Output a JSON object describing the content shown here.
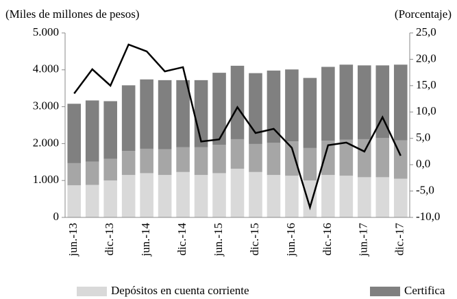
{
  "chart_data": {
    "type": "bar",
    "ylabel": "(Miles de millones de pesos)",
    "y2label": "(Porcentaje)",
    "categories": [
      "jun.-13",
      null,
      "dic.-13",
      null,
      "jun.-14",
      null,
      "dic.-14",
      null,
      "jun.-15",
      null,
      "dic.-15",
      null,
      "jun.-16",
      null,
      "dic.-16",
      null,
      "jun.-17",
      null,
      "dic.-17"
    ],
    "series": [
      {
        "name": "Depósitos en cuenta corriente",
        "color": "#d9d9d9",
        "values": [
          870,
          880,
          1000,
          1150,
          1200,
          1150,
          1230,
          1150,
          1200,
          1320,
          1230,
          1150,
          1130,
          1000,
          1150,
          1130,
          1090,
          1090,
          1050
        ]
      },
      {
        "color": "#a6a6a6",
        "values": [
          600,
          630,
          590,
          650,
          660,
          700,
          670,
          750,
          770,
          800,
          760,
          870,
          930,
          880,
          930,
          980,
          1030,
          1060,
          1040
        ]
      },
      {
        "name": "Certifica",
        "color": "#808080",
        "values": [
          1610,
          1660,
          1560,
          1780,
          1880,
          1870,
          1820,
          1820,
          1950,
          1990,
          1920,
          1960,
          1950,
          1900,
          2000,
          2030,
          2000,
          1970,
          2050
        ]
      },
      {
        "type": "line",
        "axis": "y2",
        "color": "#000000",
        "values": [
          13.5,
          18.1,
          15.0,
          22.8,
          21.5,
          17.7,
          18.5,
          4.4,
          4.8,
          10.9,
          6.0,
          6.8,
          3.2,
          -8.1,
          3.7,
          4.2,
          2.5,
          9.0,
          1.7
        ]
      }
    ],
    "ylim": [
      0,
      5000
    ],
    "yticks": [
      0,
      {
        "value": 1000,
        "label": "1.000"
      },
      {
        "value": 2000,
        "label": "2.000"
      },
      {
        "value": 3000,
        "label": "3.000"
      },
      {
        "value": 4000,
        "label": "4.000"
      },
      {
        "value": 5000,
        "label": "5.000"
      }
    ],
    "y2lim": [
      -10,
      25
    ],
    "y2ticks": [
      {
        "value": -10,
        "label": "-10,0"
      },
      {
        "value": -5,
        "label": "-5,0"
      },
      {
        "value": 0,
        "label": "0,0"
      },
      {
        "value": 5,
        "label": "5,0"
      },
      {
        "value": 10,
        "label": "10,0"
      },
      {
        "value": 15,
        "label": "15,0"
      },
      {
        "value": 20,
        "label": "20,0"
      },
      {
        "value": 25,
        "label": "25,0"
      }
    ]
  }
}
